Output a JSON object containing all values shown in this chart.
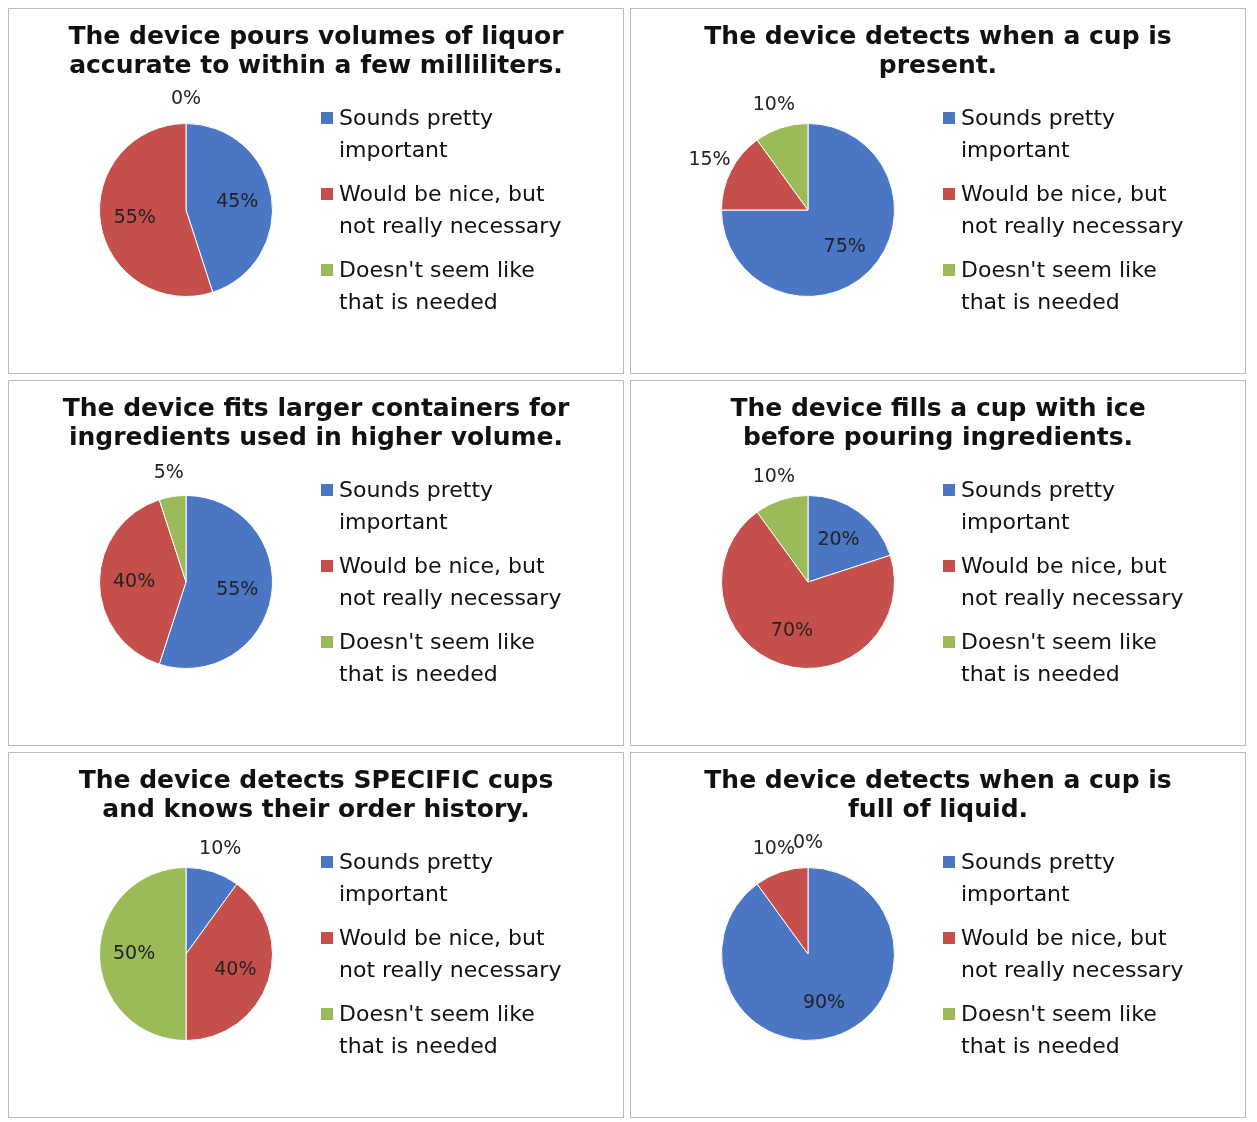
{
  "chart_data": [
    {
      "type": "pie",
      "title": "The device pours volumes of liquor accurate to within a few milliliters.",
      "categories": [
        "Sounds pretty important",
        "Would be nice, but not really necessary",
        "Doesn't seem like that is needed"
      ],
      "values": [
        45,
        55,
        0
      ],
      "value_labels": [
        "45%",
        "55%",
        "0%"
      ],
      "colors": [
        "#4a76c4",
        "#c5504b",
        "#9bbb59"
      ],
      "legend": "right"
    },
    {
      "type": "pie",
      "title": "The device detects when a cup is present.",
      "categories": [
        "Sounds pretty important",
        "Would be nice, but not really necessary",
        "Doesn't seem like that is needed"
      ],
      "values": [
        75,
        15,
        10
      ],
      "value_labels": [
        "75%",
        "15%",
        "10%"
      ],
      "colors": [
        "#4a76c4",
        "#c5504b",
        "#9bbb59"
      ],
      "legend": "right"
    },
    {
      "type": "pie",
      "title": "The device fits larger containers for ingredients used in higher volume.",
      "categories": [
        "Sounds pretty important",
        "Would be nice, but not really necessary",
        "Doesn't seem like that is needed"
      ],
      "values": [
        55,
        40,
        5
      ],
      "value_labels": [
        "55%",
        "40%",
        "5%"
      ],
      "colors": [
        "#4a76c4",
        "#c5504b",
        "#9bbb59"
      ],
      "legend": "right"
    },
    {
      "type": "pie",
      "title": "The device fills a cup with ice before pouring ingredients.",
      "categories": [
        "Sounds pretty important",
        "Would be nice, but not really necessary",
        "Doesn't seem like that is needed"
      ],
      "values": [
        20,
        70,
        10
      ],
      "value_labels": [
        "20%",
        "70%",
        "10%"
      ],
      "colors": [
        "#4a76c4",
        "#c5504b",
        "#9bbb59"
      ],
      "legend": "right"
    },
    {
      "type": "pie",
      "title": "The device detects SPECIFIC cups and knows their order history.",
      "categories": [
        "Sounds pretty important",
        "Would be nice, but not really necessary",
        "Doesn't seem like that is needed"
      ],
      "values": [
        10,
        40,
        50
      ],
      "value_labels": [
        "10%",
        "40%",
        "50%"
      ],
      "colors": [
        "#4a76c4",
        "#c5504b",
        "#9bbb59"
      ],
      "legend": "right"
    },
    {
      "type": "pie",
      "title": "The device detects when a cup is full of liquid.",
      "categories": [
        "Sounds pretty important",
        "Would be nice, but not really necessary",
        "Doesn't seem like that is needed"
      ],
      "values": [
        90,
        10,
        0
      ],
      "value_labels": [
        "90%",
        "10%",
        "0%"
      ],
      "colors": [
        "#4a76c4",
        "#c5504b",
        "#9bbb59"
      ],
      "legend": "right"
    }
  ]
}
